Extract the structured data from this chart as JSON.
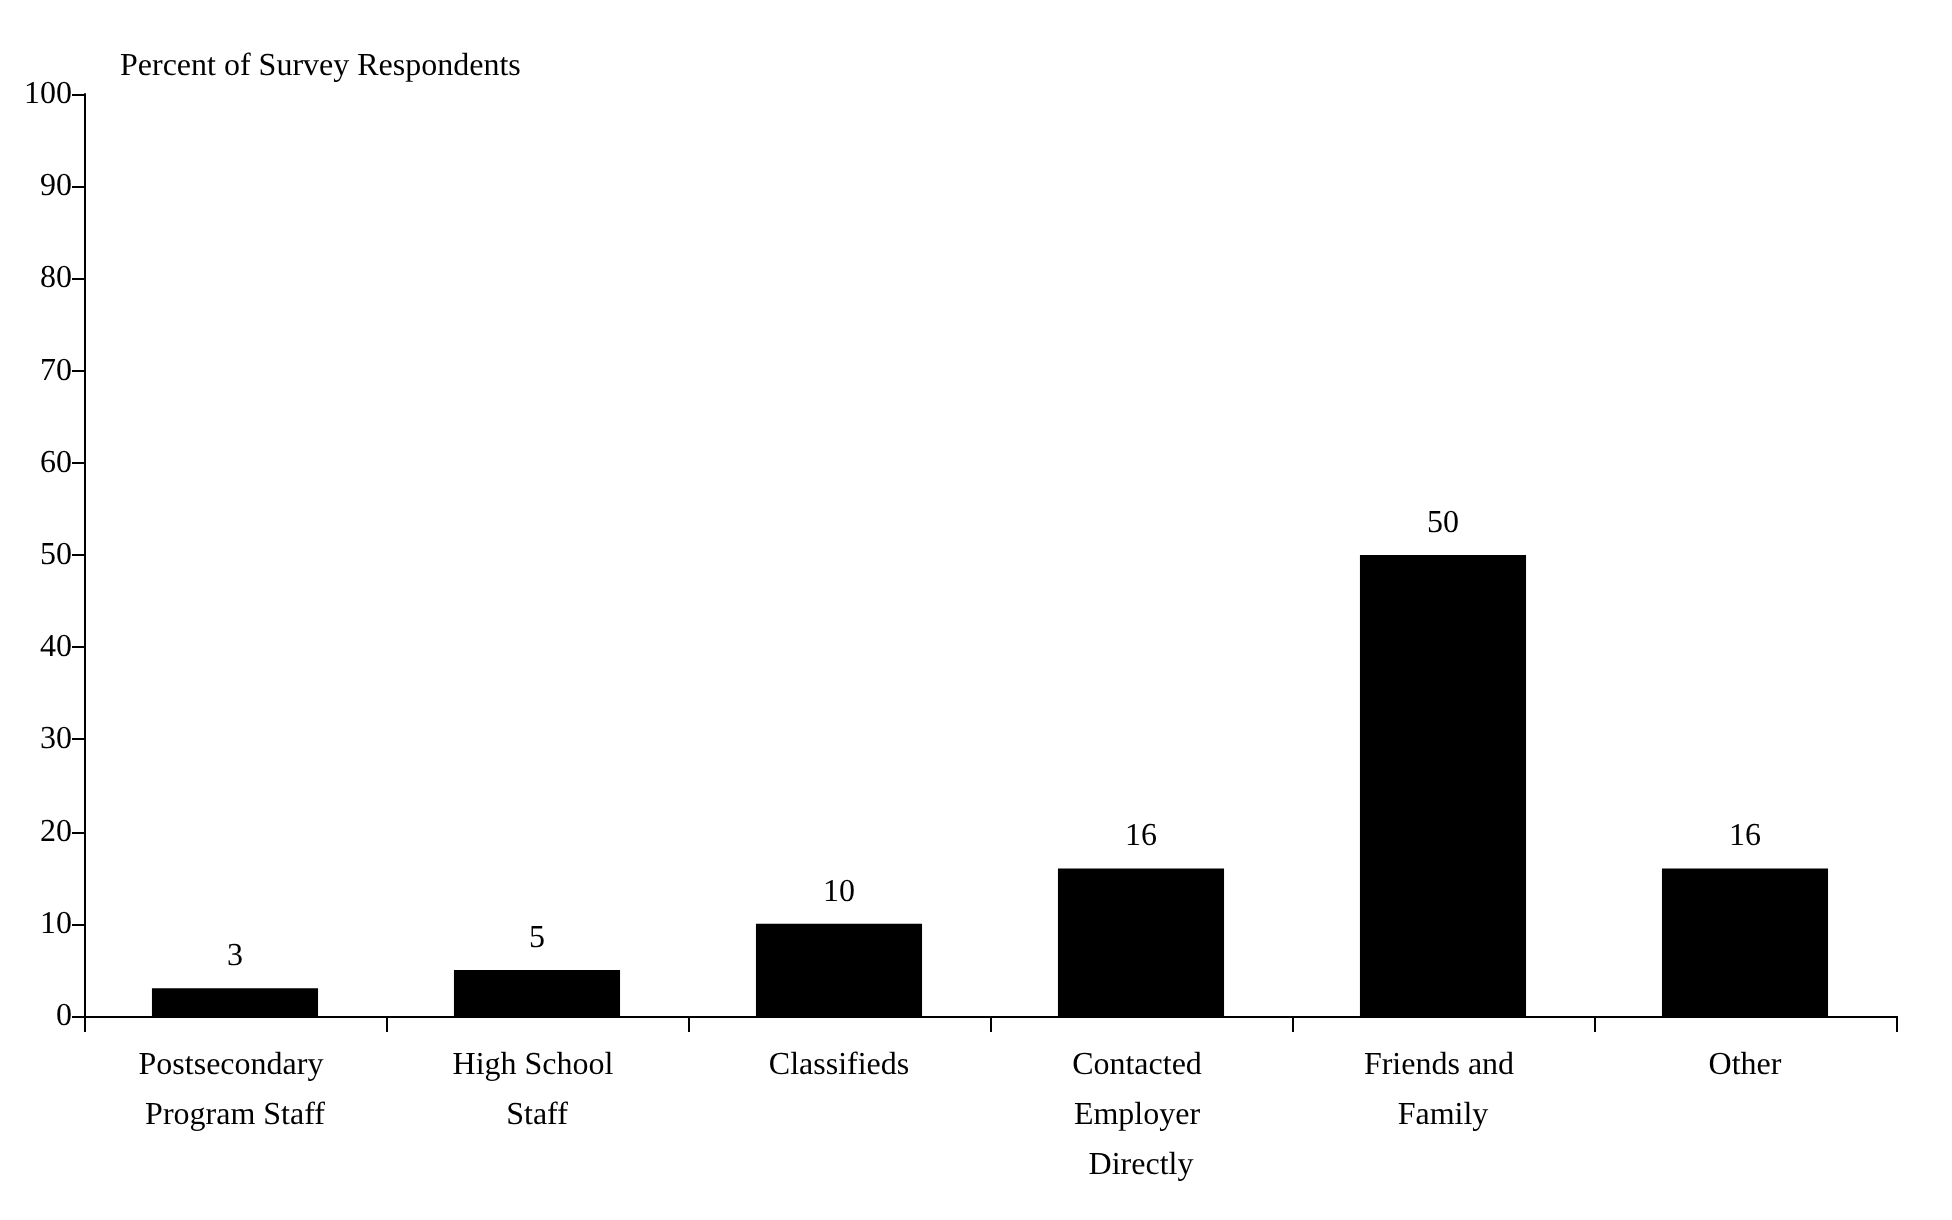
{
  "chart_data": {
    "type": "bar",
    "ylabel": "Percent of Survey Respondents",
    "categories": [
      "Postsecondary Program Staff",
      "High School Staff",
      "Classifieds",
      "Contacted Employer Directly",
      "Friends and Family",
      "Other"
    ],
    "values": [
      3,
      5,
      10,
      16,
      50,
      16
    ],
    "color": "#000000",
    "data_labels": true,
    "ylim": [
      0,
      100
    ],
    "yticks": [
      0,
      10,
      20,
      30,
      40,
      50,
      60,
      70,
      80,
      90,
      100
    ],
    "grid": false
  }
}
